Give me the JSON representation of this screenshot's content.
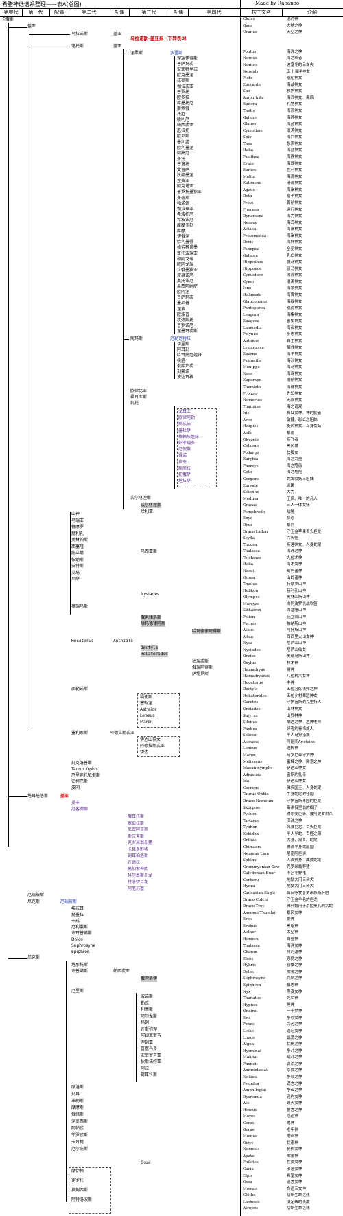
{
  "title": "希腊神话谱系整理——表A(总图)",
  "made_by": "Made by Rananoo",
  "headers": [
    "第零代",
    "第一代",
    "配偶",
    "第二代",
    "配偶",
    "第三代",
    "配偶",
    "第四代",
    "",
    "按丁文名",
    "介绍"
  ],
  "tree": {
    "chaos": "卡俄斯",
    "gaia": "盖亚",
    "uranus_spouse": "盖亚",
    "uranus": "乌拉诺斯",
    "ref_b": "乌拉诺斯-盖亚系（下转表B）",
    "pontus": "蓬托斯",
    "nereus": "涅柔斯",
    "doris": "多里斯",
    "nereids": [
      "涅瑞伊得斯",
      "普萨玛忒",
      "安菲特里忒",
      "欧克墨涅",
      "忒提斯",
      "伽拉忒亚",
      "普罗托",
      "欧多拉",
      "库墨托厄",
      "斯佩俄",
      "托厄",
      "哈利厄",
      "帕西忒亚",
      "厄拉托",
      "欧尼斯",
      "墨利忒",
      "欧利墨涅",
      "阿高厄",
      "多托",
      "普洛托",
      "斐鲁萨",
      "狄娜墨涅",
      "涅赛亚",
      "阿克塔亚",
      "普罗托墨狄亚",
      "多瑞斯",
      "帕诺佩",
      "伽拉泰亚",
      "希波托厄",
      "希波诺厄",
      "库摩多刻",
      "库摩",
      "伊俄涅",
      "哈利墨得",
      "格劳科诺墨",
      "蓬托波瑞亚",
      "勒阿戈瑞",
      "欧阿戈瑞",
      "拉俄墨狄亚",
      "波吕诺厄",
      "奥托诺厄",
      "吕西阿纳萨",
      "欧阿涅",
      "普萨玛忒",
      "墨尼普",
      "涅索",
      "欧波普",
      "忒弥斯托",
      "普罗诺厄",
      "涅墨耳忒斯"
    ],
    "thaumas": "陶玛斯",
    "thaumas_spouse": "厄勒克特拉",
    "thaumas_children": [
      "伊里斯",
      "阿耳刻",
      "哈耳庇厄姐妹",
      "埃洛",
      "俄库珀忒",
      "刻莱诺",
      "波达耳格"
    ],
    "phorcys": "福耳库斯",
    "phorcys_spouse": "刻托",
    "eurybia": "欧律比亚",
    "ceto": "刻托",
    "phorcys_children": [
      "戈耳工",
      "欧律阿勒",
      "斯忒诺",
      "墨杜萨",
      "格赖埃姐妹",
      "彭菲瑞多",
      "厄倪俄",
      "得诺",
      "拉冬",
      "斯库拉",
      "托俄萨",
      "塔拉萨"
    ],
    "tartarus_side": [
      "忒尔喀涅斯",
      "哈利亚"
    ],
    "mountains": [
      "山神",
      "乌瑞亚",
      "特摩罗",
      "赫利孔",
      "奥林帕斯",
      "西塞隆",
      "庇立翁",
      "帕纳斯",
      "安特斯",
      "艾塔",
      "尼萨"
    ],
    "marsyas": "马西亚斯",
    "oreus": "奥瑞乌斯",
    "nymphs": "Nysiades",
    "hamadryades": [
      "俄克绪洛斯",
      "哈玛德律阿斯"
    ],
    "hamadryas_group": "哈玛德律阿得斯",
    "hecaterus": "Hecaterus",
    "anchiale": "Anchiale",
    "dactyls": [
      "Dactyls",
      "Hekaterides"
    ],
    "curetes": [
      "枯瑞忒斯",
      "俄瑞阿得斯",
      "萨堤罗斯"
    ],
    "phobos": "福玻斯",
    "astraios": "Astraios",
    "leneus": "Leneus",
    "maron": "Maron",
    "silenus": "西勒诺斯",
    "satyr_children": [
      "福玻斯",
      "塞勒涅",
      "Astraios",
      "Leneus",
      "Maron"
    ],
    "melissus": "墨利索斯",
    "ida": "伊达",
    "adrasteia": "阿德拉斯忒亚",
    "melissus_children": [
      "伊达山神女",
      "阿德拉斯忒亚",
      "伊达"
    ],
    "cecrops_group": [
      "刻克洛普斯",
      "Taurus Ophis",
      "厄里克托尼俄斯",
      "史柯巴斯",
      "皮同"
    ],
    "tartarus": "塔耳塔洛斯",
    "tartarus_spouse": "盖亚",
    "typhon": "提丰",
    "echidna": "厄客德娜",
    "typhon_children": [
      "俄耳托斯",
      "塞伯拉斯",
      "尼密阿巨狮",
      "斯芬克斯",
      "克罗米翁母猪",
      "卡吕冬野猪",
      "刻耳柏洛斯",
      "许德拉",
      "高加索神鹰",
      "科尔基斯巨龙",
      "特洛伊巨龙",
      "阿厄苏塞"
    ],
    "erebus": "厄瑞玻斯",
    "nyx": "尼克斯",
    "aether": "埃忒耳",
    "hemera": "赫墨拉",
    "nyx_children": [
      "埃忒耳",
      "赫墨拉",
      "卡戎",
      "厄利俄斯",
      "许耳普诺斯",
      "Dolos",
      "Sophrosyne",
      "Epiphron"
    ],
    "charon": "卡戎",
    "thanatos": "塔那托斯",
    "hypnos": "许普诺斯",
    "hypnos_spouse": "帕西忒亚",
    "oneiroi": "俄涅洛伊",
    "eris": "厄里斯",
    "eris_children": [
      "波诺斯",
      "勒忒",
      "利摩斯",
      "阿尔戈斯",
      "玛刻",
      "许斯弥涅",
      "阿姆菲罗吉",
      "涅刻亚",
      "普塞乌多",
      "安菲罗吉亚",
      "狄斯诺弥亚",
      "阿忒",
      "荷耳科斯"
    ],
    "moros_group": [
      "摩洛斯",
      "刻耳",
      "革剌斯",
      "摩摩斯",
      "俄绪斯",
      "涅墨西斯",
      "阿帕忒",
      "菲罗忒斯",
      "卡耳柯",
      "厄尔庇斯"
    ],
    "ossa": "Ossa",
    "moirai": [
      "摩伊赖",
      "克罗托",
      "拉刻西斯",
      "阿特洛波斯"
    ]
  },
  "right_panel": [
    [
      "Chaos",
      "混沌神"
    ],
    [
      "Gaea",
      "大地之神"
    ],
    [
      "Uranus",
      "天空之神"
    ],
    [
      "",
      ""
    ],
    [
      "",
      ""
    ],
    [
      "Pontus",
      "海洋之神"
    ],
    [
      "Nereus",
      "海之长者"
    ],
    [
      "Nerites",
      "波塞冬的马车夫"
    ],
    [
      "Nereids",
      "五十海洋神女"
    ],
    [
      "Ploto",
      "航船神女"
    ],
    [
      "Eucrante",
      "海战神女"
    ],
    [
      "Sao",
      "救护神女"
    ],
    [
      "Amphitrite",
      "海浪神女、海后"
    ],
    [
      "Eudora",
      "礼物神女"
    ],
    [
      "Thetis",
      "海浪神女"
    ],
    [
      "Galene",
      "海静神女"
    ],
    [
      "Glauce",
      "海蓝神女"
    ],
    [
      "Cymothoe",
      "浪涛神女"
    ],
    [
      "Spio",
      "海穴神女"
    ],
    [
      "Thoe",
      "急流神女"
    ],
    [
      "Halia",
      "海盐神女"
    ],
    [
      "Pasithea",
      "海静神女"
    ],
    [
      "Erato",
      "海歌神女"
    ],
    [
      "Eunice",
      "胜利神女"
    ],
    [
      "Melite",
      "海湾神女"
    ],
    [
      "Eulimene",
      "港湾神女"
    ],
    [
      "Agaue",
      "海岸神女"
    ],
    [
      "Doto",
      "给予神女"
    ],
    [
      "Proto",
      "首航神女"
    ],
    [
      "Pherusa",
      "运行神女"
    ],
    [
      "Dynamene",
      "海力神女"
    ],
    [
      "Nesaea",
      "海岛神女"
    ],
    [
      "Actaea",
      "海岸神女"
    ],
    [
      "Protomedea",
      "海岸神女"
    ],
    [
      "Doris",
      "海鲜神女"
    ],
    [
      "Panopea",
      "全见神女"
    ],
    [
      "Galatea",
      "乳白神女"
    ],
    [
      "Hippothoe",
      "快马神女"
    ],
    [
      "Hipponoe",
      "驭马神女"
    ],
    [
      "Cymodoce",
      "收浪神女"
    ],
    [
      "Cymo",
      "浪涛神女"
    ],
    [
      "Ione",
      "海紫神女"
    ],
    [
      "Halimede",
      "海谋神女"
    ],
    [
      "Glauconome",
      "海绿神女"
    ],
    [
      "Pontoporea",
      "航海神女"
    ],
    [
      "Leagora",
      "海集神女"
    ],
    [
      "Euagora",
      "善集神女"
    ],
    [
      "Laomedia",
      "海议神女"
    ],
    [
      "Polynoe",
      "多思神女"
    ],
    [
      "Autonoe",
      "自主神女"
    ],
    [
      "Lysianassa",
      "解救神女"
    ],
    [
      "Euarne",
      "海羊神女"
    ],
    [
      "Psamathe",
      "海沙神女"
    ],
    [
      "Menippe",
      "海马神女"
    ],
    [
      "Neso",
      "海岛神女"
    ],
    [
      "Eupompe",
      "顺航神女"
    ],
    [
      "Themisto",
      "海律神女"
    ],
    [
      "Pronoe",
      "先知神女"
    ],
    [
      "Nemertes",
      "无误神女"
    ],
    [
      "Thaumas",
      "海之奇观"
    ],
    [
      "Iris",
      "彩虹女神、神的使者"
    ],
    [
      "Arce",
      "敏捷、彩虹之姐妹"
    ],
    [
      "Harpies",
      "旋风神女、鸟身女妖"
    ],
    [
      "Aello",
      "暴雨"
    ],
    [
      "Okypete",
      "疾飞者"
    ],
    [
      "Celaeno",
      "黑风暴"
    ],
    [
      "Podarge",
      "快脚女"
    ],
    [
      "Eurybia",
      "海之力量"
    ],
    [
      "Phorcys",
      "海之隐患"
    ],
    [
      "Ceto",
      "海之危险"
    ],
    [
      "Gorgons",
      "蛇发女妖三姐妹"
    ],
    [
      "Euryale",
      "远跳"
    ],
    [
      "Sthenno",
      "大力"
    ],
    [
      "Medusa",
      "王后、唯一的凡人"
    ],
    [
      "Graeae",
      "三人一体女妖"
    ],
    [
      "Pemphredo",
      "战警"
    ],
    [
      "Enyo",
      "惊恐"
    ],
    [
      "Dino",
      "暴烈"
    ],
    [
      "Draco Ladon",
      "守卫金苹果百头巨龙"
    ],
    [
      "Scylla",
      "六头怪"
    ],
    [
      "Thoosa",
      "疾速神女、人身蛇尾"
    ],
    [
      "Thalassa",
      "海洋之神"
    ],
    [
      "Telchines",
      "九位术神"
    ],
    [
      "Halia",
      "海术女神"
    ],
    [
      "Nesoi",
      "岛屿诸神"
    ],
    [
      "Ourea",
      "山岭诸神"
    ],
    [
      "Tmolus",
      "特摩罗山神"
    ],
    [
      "Helikon",
      "赫利孔山神"
    ],
    [
      "Olympos",
      "奥林匹斯山神"
    ],
    [
      "Marsyas",
      "向阿波罗挑战吹笛"
    ],
    [
      "Kithairon",
      "西塞隆山神"
    ],
    [
      "Pelion",
      "庇立翁山神"
    ],
    [
      "Parnes",
      "帕纳斯山神"
    ],
    [
      "Athos",
      "阿托斯山神"
    ],
    [
      "Aitna",
      "西西里火山女神"
    ],
    [
      "Nysa",
      "尼萨山山神"
    ],
    [
      "Nysiades",
      "尼萨山仙女"
    ],
    [
      "Oreios",
      "奥瑞乌斯山神"
    ],
    [
      "Oxylus",
      "林木神"
    ],
    [
      "Hamadryas",
      "树神"
    ],
    [
      "Hamadryades",
      "八位树木女神"
    ],
    [
      "Hecaterus",
      "丰神"
    ],
    [
      "Dactyls",
      "五位冶炼法师之神"
    ],
    [
      "Hekaterides",
      "五位乡村舞蹈神女"
    ],
    [
      "Curetes",
      "守护宙斯的克里特人"
    ],
    [
      "Oreiades",
      "山林神女"
    ],
    [
      "Satyrus",
      "山野林神"
    ],
    [
      "Silenus",
      "酗酒之神、酒神老师"
    ],
    [
      "Phobos",
      "好客的青梅旅人"
    ],
    [
      "Selenoi",
      "半人马狩猎旅"
    ],
    [
      "Astraios",
      "可能同Aristaios"
    ],
    [
      "Leneus",
      "酒榨神"
    ],
    [
      "Maron",
      "马罗尼亚守护神"
    ],
    [
      "Melisseus",
      "蜜蜂之神、民意之神"
    ],
    [
      "Idaean nymphs",
      "伊达山神女"
    ],
    [
      "Adrasteia",
      "宙斯的乳母"
    ],
    [
      "Ida",
      "伊达山神女"
    ],
    [
      "Cecrops",
      "雅典国王、人身蛇尾"
    ],
    [
      "Taurus Ophis",
      "牛身蛇尾的怪兽"
    ],
    [
      "Draco Nemeum",
      "守护宙斯果园的巨龙"
    ],
    [
      "Skorpios",
      "毒杀俄里翁的蝎子"
    ],
    [
      "Python",
      "得尔斐巨蟒、被阿波罗射杀"
    ],
    [
      "Tartarus",
      "深渊之神"
    ],
    [
      "Typhon",
      "风暴巨龙、百头巨龙"
    ],
    [
      "Echidna",
      "半人半蛇、百怪之母"
    ],
    [
      "Orthus",
      "犬身、双首、蛇尾"
    ],
    [
      "Chimaera",
      "狮首羊身蛇尾兽"
    ],
    [
      "Nemean Lion",
      "尼密阿巨狮"
    ],
    [
      "Sphinx",
      "人首狮身、鹰翼蛇尾"
    ],
    [
      "Crommyonian Sow",
      "克罗米翁野猪"
    ],
    [
      "Calydonian Boar",
      "卡吕冬野猪"
    ],
    [
      "Cerberu",
      "地狱大门三头犬"
    ],
    [
      "Hydra",
      "地狱大门三头犬"
    ],
    [
      "Caucasian Eagle",
      "每日啄食普罗米修斯肝脏"
    ],
    [
      "Draco Colchi",
      "守卫金羊毛的巨龙"
    ],
    [
      "Draco Troy",
      "雅典娜用于杀拉奥孔的大蛇"
    ],
    [
      "Anconoi Thuellai",
      "暴风女神"
    ],
    [
      "Eros",
      "爱神"
    ],
    [
      "Erebus",
      "黑暗神"
    ],
    [
      "Aether",
      "太空神"
    ],
    [
      "Hemera",
      "白昼神"
    ],
    [
      "Thalassa",
      "海洋女神"
    ],
    [
      "Charon",
      "冥河渡神"
    ],
    [
      "Eleos",
      "悲悯之神"
    ],
    [
      "Hybris",
      "骄横之神"
    ],
    [
      "Dolos",
      "欺骗之神"
    ],
    [
      "Sophrosyne",
      "克制之神"
    ],
    [
      "Epiphron",
      "慎思神"
    ],
    [
      "Nyx",
      "黑夜女神"
    ],
    [
      "Thanatos",
      "死亡神"
    ],
    [
      "Hypnos",
      "睡神"
    ],
    [
      "Oneiroi",
      "一千梦神"
    ],
    [
      "Eris",
      "争吵女神"
    ],
    [
      "Ponos",
      "劳苦之神"
    ],
    [
      "Lethe",
      "遗忘女神"
    ],
    [
      "Limos",
      "饥荒之神"
    ],
    [
      "Algea",
      "忧伤之神"
    ],
    [
      "Hysminai",
      "争斗之神"
    ],
    [
      "Makhai",
      "战斗之神"
    ],
    [
      "Phonoi",
      "谋杀之神"
    ],
    [
      "Androctasiai",
      "杀戮之神"
    ],
    [
      "Neikea",
      "争吵之神"
    ],
    [
      "Pseudea",
      "谎言之神"
    ],
    [
      "Amphilogiai",
      "争议之神"
    ],
    [
      "Dysnomia",
      "违约女神"
    ],
    [
      "Ate",
      "毁灭女神"
    ],
    [
      "Horcus",
      "誓言之神"
    ],
    [
      "Moros",
      "厄运神"
    ],
    [
      "Ceres",
      "鬼神"
    ],
    [
      "Geras",
      "老年神"
    ],
    [
      "Momus",
      "嘲讽神"
    ],
    [
      "Oizys",
      "忧患神"
    ],
    [
      "Nemesis",
      "复仇女神"
    ],
    [
      "Apate",
      "欺骗神"
    ],
    [
      "Philotes",
      "性爱女神"
    ],
    [
      "Cacia",
      "邪恶女神"
    ],
    [
      "Elpis",
      "希望女神"
    ],
    [
      "Ossa",
      "谣言女神"
    ],
    [
      "Moirae",
      "命运三女神"
    ],
    [
      "Clotho",
      "纺织生命之线"
    ],
    [
      "Lachesis",
      "决定线的长度"
    ],
    [
      "Atropos",
      "切断生命之线"
    ]
  ]
}
